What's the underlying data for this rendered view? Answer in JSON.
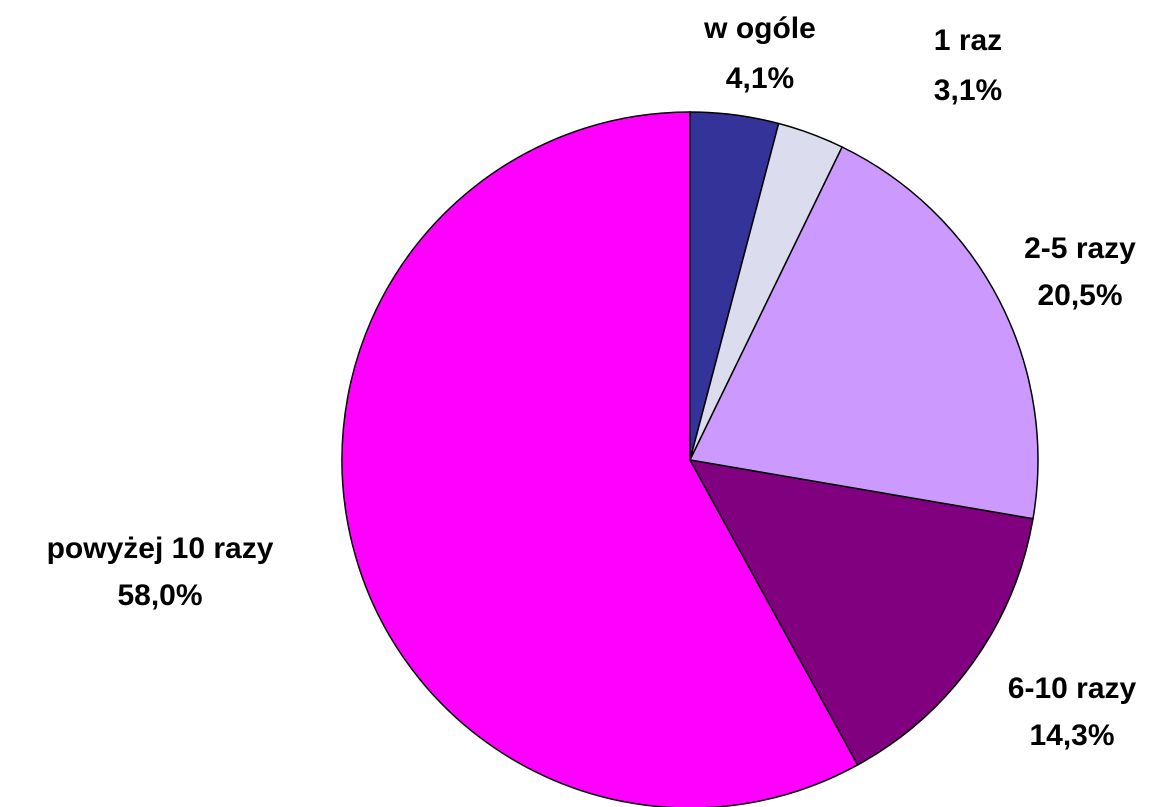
{
  "chart_data": {
    "type": "pie",
    "categories": [
      "w ogóle",
      "1 raz",
      "2-5 razy",
      "6-10 razy",
      "powyżej 10 razy"
    ],
    "values": [
      4.1,
      3.1,
      20.5,
      14.3,
      58.0
    ],
    "value_labels": [
      "4,1%",
      "3,1%",
      "20,5%",
      "14,3%",
      "58,0%"
    ],
    "colors": [
      "#333399",
      "#dcdcef",
      "#cc99ff",
      "#800080",
      "#ff00ff"
    ]
  }
}
